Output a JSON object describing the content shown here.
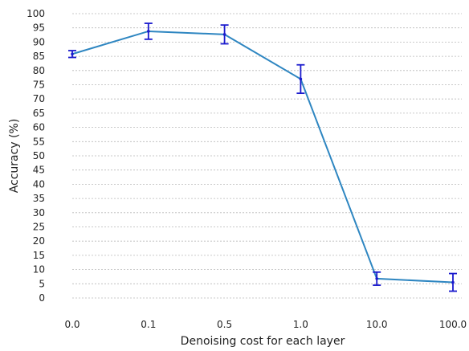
{
  "chart_data": {
    "type": "line",
    "categories": [
      "0.0",
      "0.1",
      "0.5",
      "1.0",
      "10.0",
      "100.0"
    ],
    "series": [
      {
        "values": [
          85.8,
          93.8,
          92.7,
          77.0,
          6.8,
          5.5
        ],
        "error": [
          1.2,
          2.8,
          3.3,
          5.0,
          2.3,
          3.1
        ]
      }
    ],
    "xlabel": "Denoising cost for each layer",
    "ylabel": "Accuracy (%)",
    "ylim": [
      0,
      100
    ],
    "yticks": [
      0,
      5,
      10,
      15,
      20,
      25,
      30,
      35,
      40,
      45,
      50,
      55,
      60,
      65,
      70,
      75,
      80,
      85,
      90,
      95,
      100
    ],
    "grid": "horizontal dashed",
    "colors": {
      "line": "#2e86c1",
      "errorbar": "#1a1acd",
      "grid": "#b8b8b8"
    }
  }
}
